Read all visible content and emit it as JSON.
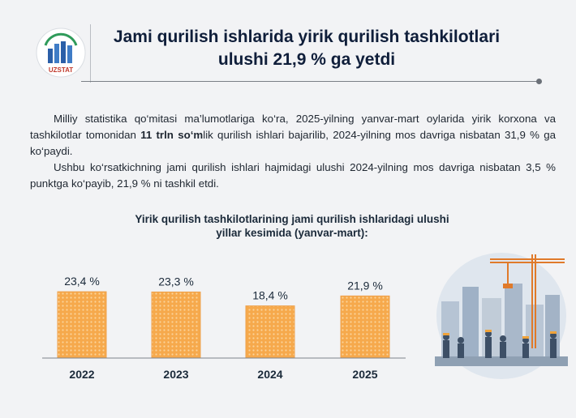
{
  "header": {
    "logo_text": "UZSTAT",
    "title_line1": "Jami qurilish ishlarida yirik qurilish tashkilotlari",
    "title_line2": "ulushi 21,9 % ga yetdi"
  },
  "body": {
    "p1_a": "Milliy statistika qo‘mitasi ma’lumotlariga ko‘ra, 2025-yilning yanvar-mart oylarida yirik korxona va tashkilotlar tomonidan ",
    "p1_bold": "11 trln so‘m",
    "p1_b": "lik qurilish ishlari bajarilib, 2024-yilning mos davriga nisbatan 31,9 % ga ko‘paydi.",
    "p2": "Ushbu ko‘rsatkichning jami qurilish ishlari hajmidagi ulushi 2024-yilning mos davriga nisbatan 3,5 % punktga ko‘payib, 21,9 % ni tashkil etdi."
  },
  "chart_data": {
    "type": "bar",
    "title_line1": "Yirik qurilish tashkilotlarining jami qurilish ishlaridagi ulushi",
    "title_line2": "yillar kesimida (yanvar-mart):",
    "categories": [
      "2022",
      "2023",
      "2024",
      "2025"
    ],
    "values": [
      23.4,
      23.3,
      18.4,
      21.9
    ],
    "value_labels": [
      "23,4 %",
      "23,3 %",
      "18,4 %",
      "21,9 %"
    ],
    "ylim": [
      0,
      24
    ],
    "grid": false,
    "legend": "none",
    "bar_color": "#f6a94c",
    "bar_pattern_color": "#fbd39a"
  },
  "illustration": {
    "icon": "construction-site-icon"
  }
}
